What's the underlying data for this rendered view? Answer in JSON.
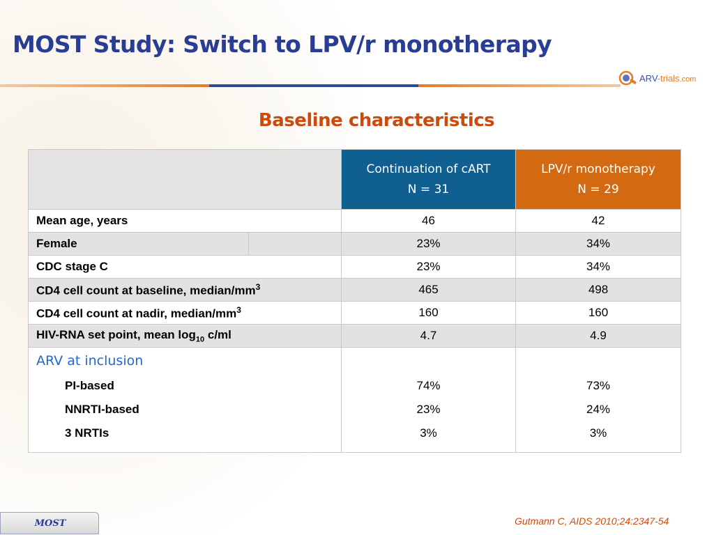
{
  "slide": {
    "title": "MOST Study: Switch to LPV/r monotherapy",
    "subtitle": "Baseline characteristics",
    "logo": {
      "part1": "ARV",
      "part2": "-trials",
      "part3": ".com"
    },
    "footer_tag": "MOST",
    "citation": "Gutmann C, AIDS 2010;24:2347-54",
    "colors": {
      "title": "#2a3d94",
      "accent_orange": "#d36a12",
      "accent_blue": "#0f5f91",
      "section_blue": "#2566d6"
    }
  },
  "table": {
    "col_cart": {
      "line1": "Continuation of cART",
      "line2": "N = 31"
    },
    "col_lpv": {
      "line1": "LPV/r monotherapy",
      "line2": "N = 29"
    },
    "rows": [
      {
        "label": "Mean age, years",
        "cart": "46",
        "lpv": "42"
      },
      {
        "label": "Female",
        "cart": "23%",
        "lpv": "34%"
      },
      {
        "label": "CDC stage C",
        "cart": "23%",
        "lpv": "34%"
      },
      {
        "label": "CD4 cell count at baseline, median/mm",
        "sup": "3",
        "cart": "465",
        "lpv": "498"
      },
      {
        "label": "CD4 cell count at nadir, median/mm",
        "sup": "3",
        "cart": "160",
        "lpv": "160"
      },
      {
        "label": "HIV-RNA set point, mean log",
        "sub": "10",
        "suffix": " c/ml",
        "cart": "4.7",
        "lpv": "4.9"
      }
    ],
    "arv": {
      "title": "ARV at inclusion",
      "items": [
        {
          "label": "PI-based",
          "cart": "74%",
          "lpv": "73%"
        },
        {
          "label": "NNRTI-based",
          "cart": "23%",
          "lpv": "24%"
        },
        {
          "label": "3 NRTIs",
          "cart": "3%",
          "lpv": "3%"
        }
      ]
    }
  }
}
